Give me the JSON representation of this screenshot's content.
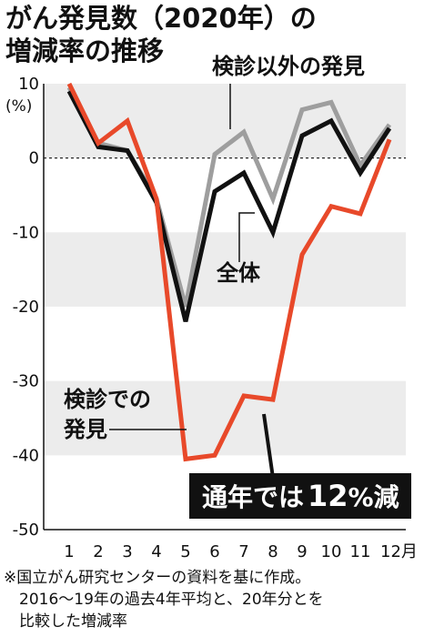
{
  "title": [
    "がん発見数（2020年）の",
    "増減率の推移"
  ],
  "unit": "(%)",
  "chart_data": {
    "type": "line",
    "categories": [
      "1",
      "2",
      "3",
      "4",
      "5",
      "6",
      "7",
      "8",
      "9",
      "10",
      "11",
      "12月"
    ],
    "x": [
      1,
      2,
      3,
      4,
      5,
      6,
      7,
      8,
      9,
      10,
      11,
      12
    ],
    "ylim": [
      -50,
      10
    ],
    "yticks": [
      10,
      0,
      -10,
      -20,
      -30,
      -40,
      -50
    ],
    "grid": "alternating horizontal bands",
    "series": [
      {
        "name": "検診以外の発見",
        "color": "#9e9e9e",
        "values": [
          9.5,
          2.0,
          1.0,
          -5.5,
          -20.0,
          0.5,
          3.5,
          -5.5,
          6.5,
          7.5,
          -1.0,
          4.5
        ]
      },
      {
        "name": "全体",
        "color": "#111111",
        "values": [
          9.0,
          1.5,
          1.0,
          -6.0,
          -22.0,
          -4.5,
          -2.0,
          -10.0,
          3.0,
          5.0,
          -2.0,
          4.0
        ]
      },
      {
        "name": "検診での発見",
        "color": "#e8492a",
        "values": [
          10.0,
          2.0,
          5.0,
          -5.5,
          -40.5,
          -40.0,
          -32.0,
          -32.5,
          -13.0,
          -6.5,
          -7.5,
          2.5
        ]
      }
    ],
    "annotations": {
      "other_label": "検診以外の発見",
      "total_label": "全体",
      "screening_label": [
        "検診での",
        "発見"
      ],
      "callout_prefix": "通年では",
      "callout_value": "12",
      "callout_suffix": "%減"
    }
  },
  "notes": [
    "※国立がん研究センターの資料を基に作成。",
    "　2016～19年の過去4年平均と、20年分とを",
    "　比較した増減率"
  ]
}
